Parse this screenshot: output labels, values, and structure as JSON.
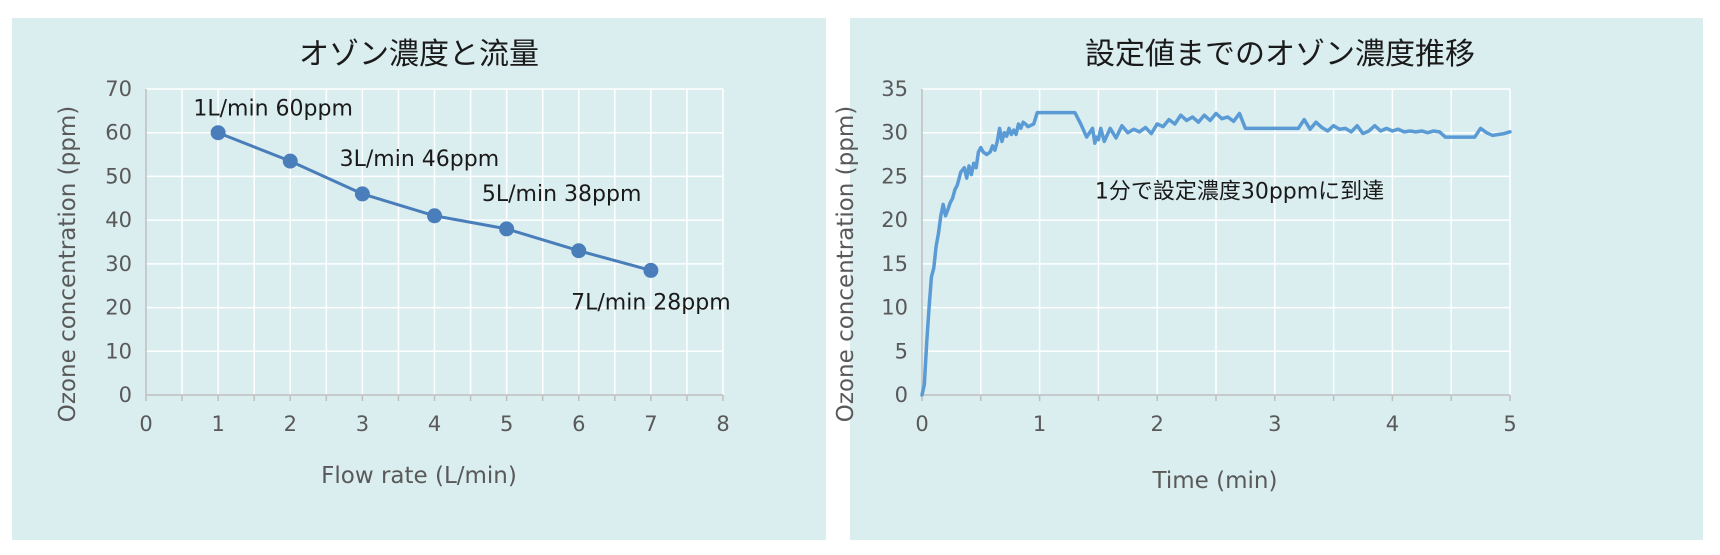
{
  "chart_data": [
    {
      "type": "line",
      "title": "オゾン濃度と流量",
      "xlabel": "Flow rate (L/min)",
      "ylabel": "Ozone  concentration  (ppm)",
      "xlim": [
        0,
        8
      ],
      "ylim": [
        0,
        70
      ],
      "x_ticks": [
        0,
        1,
        2,
        3,
        4,
        5,
        6,
        7,
        8
      ],
      "y_ticks": [
        0,
        10,
        20,
        30,
        40,
        50,
        60,
        70
      ],
      "grid": true,
      "color": "#4a7ebb",
      "series": [
        {
          "x": [
            1,
            2,
            3,
            4,
            5,
            6,
            7
          ],
          "y": [
            60,
            53.5,
            46,
            41,
            38,
            33,
            28.5
          ]
        }
      ],
      "annotations": [
        {
          "text": "1L/min 60ppm",
          "x": 1,
          "y": 60
        },
        {
          "text": "3L/min 46ppm",
          "x": 3,
          "y": 46
        },
        {
          "text": "5L/min 38ppm",
          "x": 5,
          "y": 38
        },
        {
          "text": "7L/min 28ppm",
          "x": 7,
          "y": 28.5
        }
      ]
    },
    {
      "type": "line",
      "title": "設定値までのオゾン濃度推移",
      "xlabel": "Time (min)",
      "ylabel": "Ozone  concentration  (ppm)",
      "xlim": [
        0,
        5
      ],
      "ylim": [
        0,
        35
      ],
      "x_ticks": [
        0,
        1,
        2,
        3,
        4,
        5
      ],
      "y_ticks": [
        0,
        5,
        10,
        15,
        20,
        25,
        30,
        35
      ],
      "grid": true,
      "color": "#5b9bd5",
      "series": [
        {
          "x": [
            0,
            0.02,
            0.04,
            0.06,
            0.08,
            0.1,
            0.12,
            0.14,
            0.16,
            0.18,
            0.2,
            0.22,
            0.24,
            0.26,
            0.28,
            0.3,
            0.33,
            0.36,
            0.38,
            0.4,
            0.42,
            0.44,
            0.46,
            0.48,
            0.5,
            0.52,
            0.55,
            0.58,
            0.6,
            0.62,
            0.64,
            0.66,
            0.68,
            0.7,
            0.72,
            0.74,
            0.76,
            0.78,
            0.8,
            0.82,
            0.84,
            0.86,
            0.88,
            0.9,
            0.92,
            0.95,
            0.98,
            1.0,
            1.03,
            1.06,
            1.1,
            1.15,
            1.2,
            1.25,
            1.3,
            1.35,
            1.4,
            1.45,
            1.47,
            1.48,
            1.5,
            1.52,
            1.55,
            1.6,
            1.65,
            1.7,
            1.75,
            1.8,
            1.85,
            1.9,
            1.95,
            2.0,
            2.05,
            2.1,
            2.15,
            2.2,
            2.25,
            2.3,
            2.35,
            2.4,
            2.45,
            2.5,
            2.55,
            2.6,
            2.65,
            2.7,
            2.75,
            2.8,
            2.85,
            2.9,
            2.95,
            3.0,
            3.05,
            3.1,
            3.15,
            3.2,
            3.25,
            3.3,
            3.35,
            3.4,
            3.45,
            3.5,
            3.55,
            3.6,
            3.65,
            3.7,
            3.75,
            3.8,
            3.85,
            3.9,
            3.95,
            4.0,
            4.05,
            4.1,
            4.15,
            4.2,
            4.25,
            4.3,
            4.35,
            4.4,
            4.45,
            4.5,
            4.55,
            4.6,
            4.65,
            4.7,
            4.75,
            4.8,
            4.85,
            4.9,
            4.95,
            5.0
          ],
          "y": [
            0,
            1.2,
            6,
            10,
            13.5,
            14.5,
            17,
            18.5,
            20.5,
            21.8,
            20.5,
            21.2,
            22,
            22.5,
            23.5,
            24,
            25.5,
            26,
            24.8,
            26.2,
            25.2,
            26.5,
            26,
            27.8,
            28.3,
            27.8,
            27.5,
            27.8,
            28.5,
            28,
            29,
            30.5,
            29,
            30,
            29.6,
            30.5,
            29.8,
            30.3,
            29.8,
            31,
            30.5,
            31.2,
            31,
            30.7,
            30.8,
            31,
            32.3,
            32.3,
            32.3,
            32.3,
            32.3,
            32.3,
            32.3,
            32.3,
            32.3,
            31,
            29.5,
            30.5,
            28.8,
            29.5,
            29.2,
            30.5,
            29,
            30.5,
            29.4,
            30.8,
            30,
            30.4,
            30.1,
            30.6,
            29.9,
            31,
            30.7,
            31.5,
            31,
            32,
            31.4,
            31.8,
            31.2,
            32,
            31.4,
            32.2,
            31.6,
            31.8,
            31.3,
            32.2,
            30.5,
            30.5,
            30.5,
            30.5,
            30.5,
            30.5,
            30.5,
            30.5,
            30.5,
            30.5,
            31.5,
            30.4,
            31.2,
            30.6,
            30.2,
            30.8,
            30.4,
            30.5,
            30.1,
            30.8,
            29.9,
            30.2,
            30.8,
            30.2,
            30.5,
            30.2,
            30.4,
            30.1,
            30.2,
            30.1,
            30.2,
            30,
            30.2,
            30.1,
            29.5,
            29.5,
            29.5,
            29.5,
            29.5,
            29.5,
            30.5,
            30,
            29.7,
            29.8,
            29.9,
            30.1
          ]
        }
      ],
      "annotations": [
        {
          "text": "1分で設定濃度30ppmに到達",
          "x": 2.7,
          "y": 22.5
        }
      ]
    }
  ]
}
